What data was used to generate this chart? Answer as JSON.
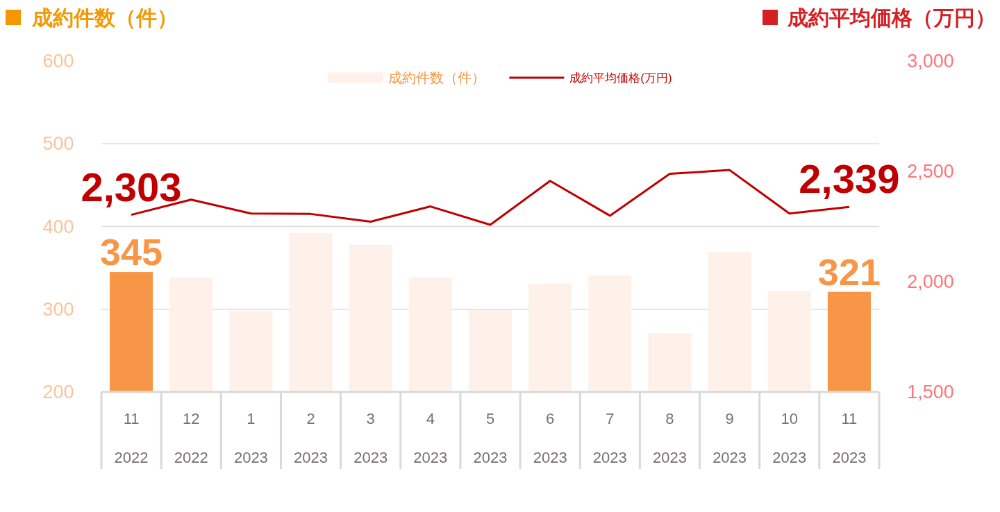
{
  "chart_data": {
    "type": "bar",
    "ylabel": "成約件数（件）",
    "y2label": "成約平均価格（万円）",
    "categories": [
      "11\n2022",
      "12\n2022",
      "1\n2023",
      "2\n2023",
      "3\n2023",
      "4\n2023",
      "5\n2023",
      "6\n2023",
      "7\n2023",
      "8\n2023",
      "9\n2023",
      "10\n2023",
      "11\n2023"
    ],
    "series": [
      {
        "name": "成約件数（件）",
        "color": "#fdf1e9",
        "colors": [
          "#f79646",
          "#fdf1e9",
          "#fdf1e9",
          "#fdf1e9",
          "#fdf1e9",
          "#fdf1e9",
          "#fdf1e9",
          "#fdf1e9",
          "#fdf1e9",
          "#fdf1e9",
          "#fdf1e9",
          "#fdf1e9",
          "#f79646"
        ],
        "values": [
          345,
          338,
          298,
          392,
          378,
          338,
          299,
          331,
          341,
          271,
          369,
          322,
          321
        ],
        "value_labels": [
          "345",
          null,
          null,
          null,
          null,
          null,
          null,
          null,
          null,
          null,
          null,
          null,
          "321"
        ]
      },
      {
        "name": "成約平均価格(万円)",
        "type": "line",
        "axis": "y2",
        "color": "#c00000",
        "values": [
          2303,
          2372,
          2309,
          2307,
          2272,
          2341,
          2258,
          2457,
          2299,
          2489,
          2506,
          2309,
          2339
        ],
        "value_labels": [
          "2,303",
          null,
          null,
          null,
          null,
          null,
          null,
          null,
          null,
          null,
          null,
          null,
          "2,339"
        ]
      }
    ],
    "ylim": [
      200,
      600
    ],
    "yticks": [
      200,
      300,
      400,
      500,
      600
    ],
    "y2lim": [
      1500,
      3000
    ],
    "y2ticks": [
      {
        "value": 1500,
        "label": "1,500"
      },
      {
        "value": 2000,
        "label": "2,000"
      },
      {
        "value": 2500,
        "label": "2,500"
      },
      {
        "value": 3000,
        "label": "3,000"
      }
    ],
    "grid": "y",
    "legend": "top"
  }
}
